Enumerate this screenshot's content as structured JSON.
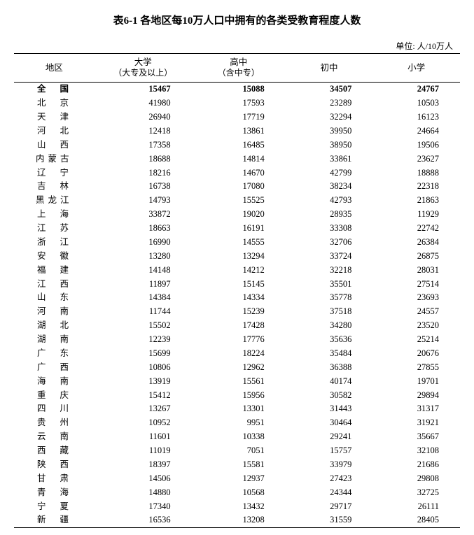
{
  "title": "表6-1 各地区每10万人口中拥有的各类受教育程度人数",
  "unit_label": "单位: 人/10万人",
  "columns": {
    "region": "地区",
    "university": "大学",
    "university_sub": "（大专及以上）",
    "highschool": "高中",
    "highschool_sub": "（含中专）",
    "middleschool": "初中",
    "primaryschool": "小学"
  },
  "rows": [
    {
      "region": "全　国",
      "univ": "15467",
      "hs": "15088",
      "ms": "34507",
      "ps": "24767",
      "first": true,
      "len": 2
    },
    {
      "region": "北　京",
      "univ": "41980",
      "hs": "17593",
      "ms": "23289",
      "ps": "10503",
      "len": 2
    },
    {
      "region": "天　津",
      "univ": "26940",
      "hs": "17719",
      "ms": "32294",
      "ps": "16123",
      "len": 2
    },
    {
      "region": "河　北",
      "univ": "12418",
      "hs": "13861",
      "ms": "39950",
      "ps": "24664",
      "len": 2
    },
    {
      "region": "山　西",
      "univ": "17358",
      "hs": "16485",
      "ms": "38950",
      "ps": "19506",
      "len": 2
    },
    {
      "region": "内蒙古",
      "univ": "18688",
      "hs": "14814",
      "ms": "33861",
      "ps": "23627",
      "len": 3
    },
    {
      "region": "辽　宁",
      "univ": "18216",
      "hs": "14670",
      "ms": "42799",
      "ps": "18888",
      "len": 2
    },
    {
      "region": "吉　林",
      "univ": "16738",
      "hs": "17080",
      "ms": "38234",
      "ps": "22318",
      "len": 2
    },
    {
      "region": "黑龙江",
      "univ": "14793",
      "hs": "15525",
      "ms": "42793",
      "ps": "21863",
      "len": 3
    },
    {
      "region": "上　海",
      "univ": "33872",
      "hs": "19020",
      "ms": "28935",
      "ps": "11929",
      "len": 2
    },
    {
      "region": "江　苏",
      "univ": "18663",
      "hs": "16191",
      "ms": "33308",
      "ps": "22742",
      "len": 2
    },
    {
      "region": "浙　江",
      "univ": "16990",
      "hs": "14555",
      "ms": "32706",
      "ps": "26384",
      "len": 2
    },
    {
      "region": "安　徽",
      "univ": "13280",
      "hs": "13294",
      "ms": "33724",
      "ps": "26875",
      "len": 2
    },
    {
      "region": "福　建",
      "univ": "14148",
      "hs": "14212",
      "ms": "32218",
      "ps": "28031",
      "len": 2
    },
    {
      "region": "江　西",
      "univ": "11897",
      "hs": "15145",
      "ms": "35501",
      "ps": "27514",
      "len": 2
    },
    {
      "region": "山　东",
      "univ": "14384",
      "hs": "14334",
      "ms": "35778",
      "ps": "23693",
      "len": 2
    },
    {
      "region": "河　南",
      "univ": "11744",
      "hs": "15239",
      "ms": "37518",
      "ps": "24557",
      "len": 2
    },
    {
      "region": "湖　北",
      "univ": "15502",
      "hs": "17428",
      "ms": "34280",
      "ps": "23520",
      "len": 2
    },
    {
      "region": "湖　南",
      "univ": "12239",
      "hs": "17776",
      "ms": "35636",
      "ps": "25214",
      "len": 2
    },
    {
      "region": "广　东",
      "univ": "15699",
      "hs": "18224",
      "ms": "35484",
      "ps": "20676",
      "len": 2
    },
    {
      "region": "广　西",
      "univ": "10806",
      "hs": "12962",
      "ms": "36388",
      "ps": "27855",
      "len": 2
    },
    {
      "region": "海　南",
      "univ": "13919",
      "hs": "15561",
      "ms": "40174",
      "ps": "19701",
      "len": 2
    },
    {
      "region": "重　庆",
      "univ": "15412",
      "hs": "15956",
      "ms": "30582",
      "ps": "29894",
      "len": 2
    },
    {
      "region": "四　川",
      "univ": "13267",
      "hs": "13301",
      "ms": "31443",
      "ps": "31317",
      "len": 2
    },
    {
      "region": "贵　州",
      "univ": "10952",
      "hs": "9951",
      "ms": "30464",
      "ps": "31921",
      "len": 2
    },
    {
      "region": "云　南",
      "univ": "11601",
      "hs": "10338",
      "ms": "29241",
      "ps": "35667",
      "len": 2
    },
    {
      "region": "西　藏",
      "univ": "11019",
      "hs": "7051",
      "ms": "15757",
      "ps": "32108",
      "len": 2
    },
    {
      "region": "陕　西",
      "univ": "18397",
      "hs": "15581",
      "ms": "33979",
      "ps": "21686",
      "len": 2
    },
    {
      "region": "甘　肃",
      "univ": "14506",
      "hs": "12937",
      "ms": "27423",
      "ps": "29808",
      "len": 2
    },
    {
      "region": "青　海",
      "univ": "14880",
      "hs": "10568",
      "ms": "24344",
      "ps": "32725",
      "len": 2
    },
    {
      "region": "宁　夏",
      "univ": "17340",
      "hs": "13432",
      "ms": "29717",
      "ps": "26111",
      "len": 2
    },
    {
      "region": "新　疆",
      "univ": "16536",
      "hs": "13208",
      "ms": "31559",
      "ps": "28405",
      "len": 2
    }
  ]
}
